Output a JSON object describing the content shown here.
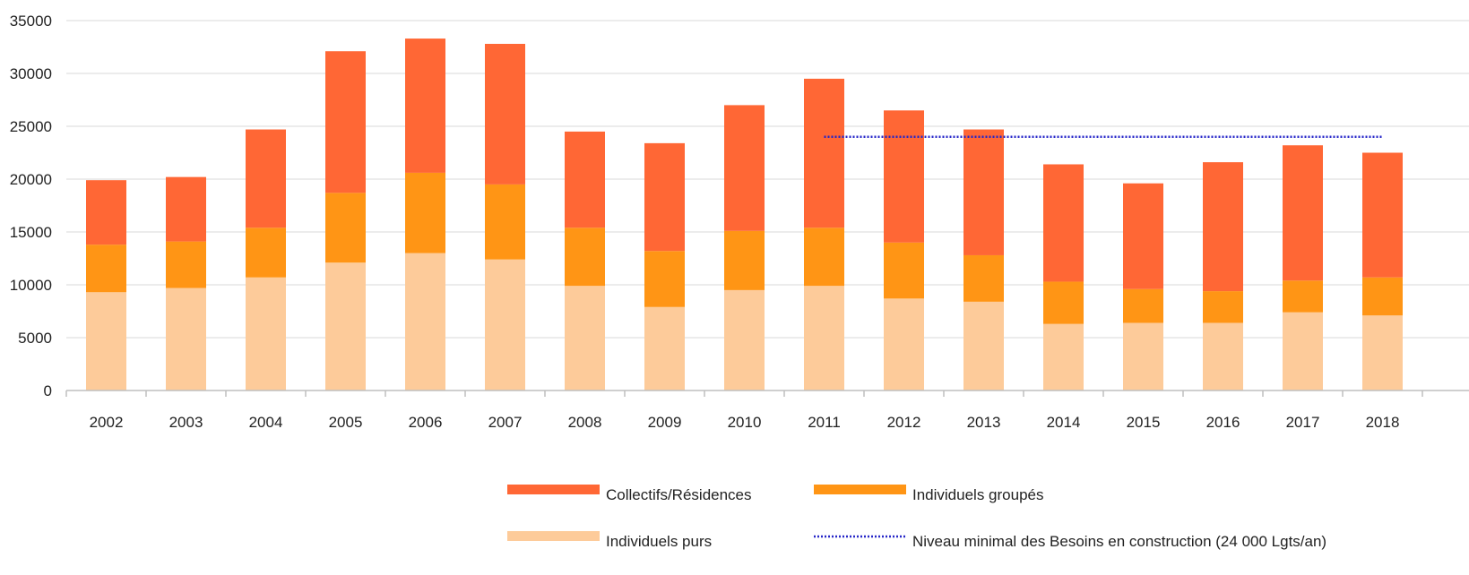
{
  "chart_data": {
    "type": "bar",
    "stacked": true,
    "categories": [
      "2002",
      "2003",
      "2004",
      "2005",
      "2006",
      "2007",
      "2008",
      "2009",
      "2010",
      "2011",
      "2012",
      "2013",
      "2014",
      "2015",
      "2016",
      "2017",
      "2018"
    ],
    "series": [
      {
        "name": "Individuels purs",
        "color": "#FDCB9A",
        "values": [
          9300,
          9700,
          10700,
          12100,
          13000,
          12400,
          9900,
          7900,
          9500,
          9900,
          8700,
          8400,
          6300,
          6400,
          6400,
          7400,
          7100
        ]
      },
      {
        "name": "Individuels groupés",
        "color": "#FF9515",
        "values": [
          4500,
          4400,
          4700,
          6600,
          7600,
          7100,
          5500,
          5300,
          5600,
          5500,
          5300,
          4400,
          4000,
          3200,
          3000,
          3000,
          3600
        ]
      },
      {
        "name": "Collectifs/Résidences",
        "color": "#FF6735",
        "values": [
          6100,
          6100,
          9300,
          13400,
          12700,
          13300,
          9100,
          10200,
          11900,
          14100,
          12500,
          11900,
          11100,
          10000,
          12200,
          12800,
          11800
        ]
      }
    ],
    "reference_line": {
      "name": "Niveau minimal des Besoins en construction (24 000 Lgts/an)",
      "value": 24000,
      "from": "2011",
      "to": "2018",
      "color": "#2626C8"
    },
    "title": "",
    "xlabel": "",
    "ylabel": "",
    "ylim": [
      0,
      35000
    ],
    "yticks": [
      "0",
      "5000",
      "10000",
      "15000",
      "20000",
      "25000",
      "30000",
      "35000"
    ],
    "grid": true,
    "legend_position": "bottom",
    "legend": [
      {
        "label": "Collectifs/Résidences",
        "kind": "bar",
        "color": "#FF6735"
      },
      {
        "label": "Individuels groupés",
        "kind": "bar",
        "color": "#FF9515"
      },
      {
        "label": "Individuels purs",
        "kind": "bar",
        "color": "#FDCB9A"
      },
      {
        "label": "Niveau minimal des Besoins en construction (24 000 Lgts/an)",
        "kind": "dotted-line",
        "color": "#2626C8"
      }
    ]
  }
}
